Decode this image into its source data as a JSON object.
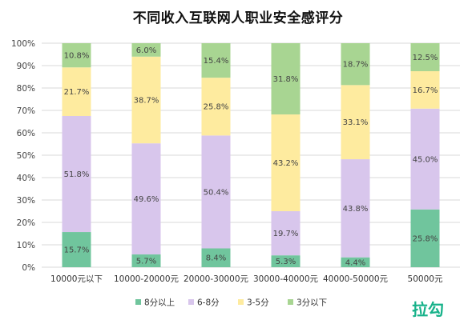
{
  "chart_data": {
    "type": "bar",
    "stacked": true,
    "title": "不同收入互联网人职业安全感评分",
    "categories": [
      "10000元以下",
      "10000-20000元",
      "20000-30000元",
      "30000-40000元",
      "40000-50000元",
      "50000元"
    ],
    "series": [
      {
        "name": "8分以上",
        "color": "#70c59d",
        "values": [
          15.7,
          5.7,
          8.4,
          5.3,
          4.4,
          25.8
        ]
      },
      {
        "name": "6-8分",
        "color": "#d8c6ec",
        "values": [
          51.8,
          49.6,
          50.4,
          19.7,
          43.8,
          45.0
        ]
      },
      {
        "name": "3-5分",
        "color": "#feeb9f",
        "values": [
          21.7,
          38.7,
          25.8,
          43.2,
          33.1,
          16.7
        ]
      },
      {
        "name": "3分以下",
        "color": "#a8d592",
        "values": [
          10.8,
          6.0,
          15.4,
          31.8,
          18.7,
          12.5
        ]
      }
    ],
    "ylim": [
      0,
      100
    ],
    "yticks": [
      "0%",
      "10%",
      "20%",
      "30%",
      "40%",
      "50%",
      "60%",
      "70%",
      "80%",
      "90%",
      "100%"
    ],
    "legend_position": "bottom",
    "grid": true
  },
  "brand": {
    "logo_text": "拉勾"
  }
}
